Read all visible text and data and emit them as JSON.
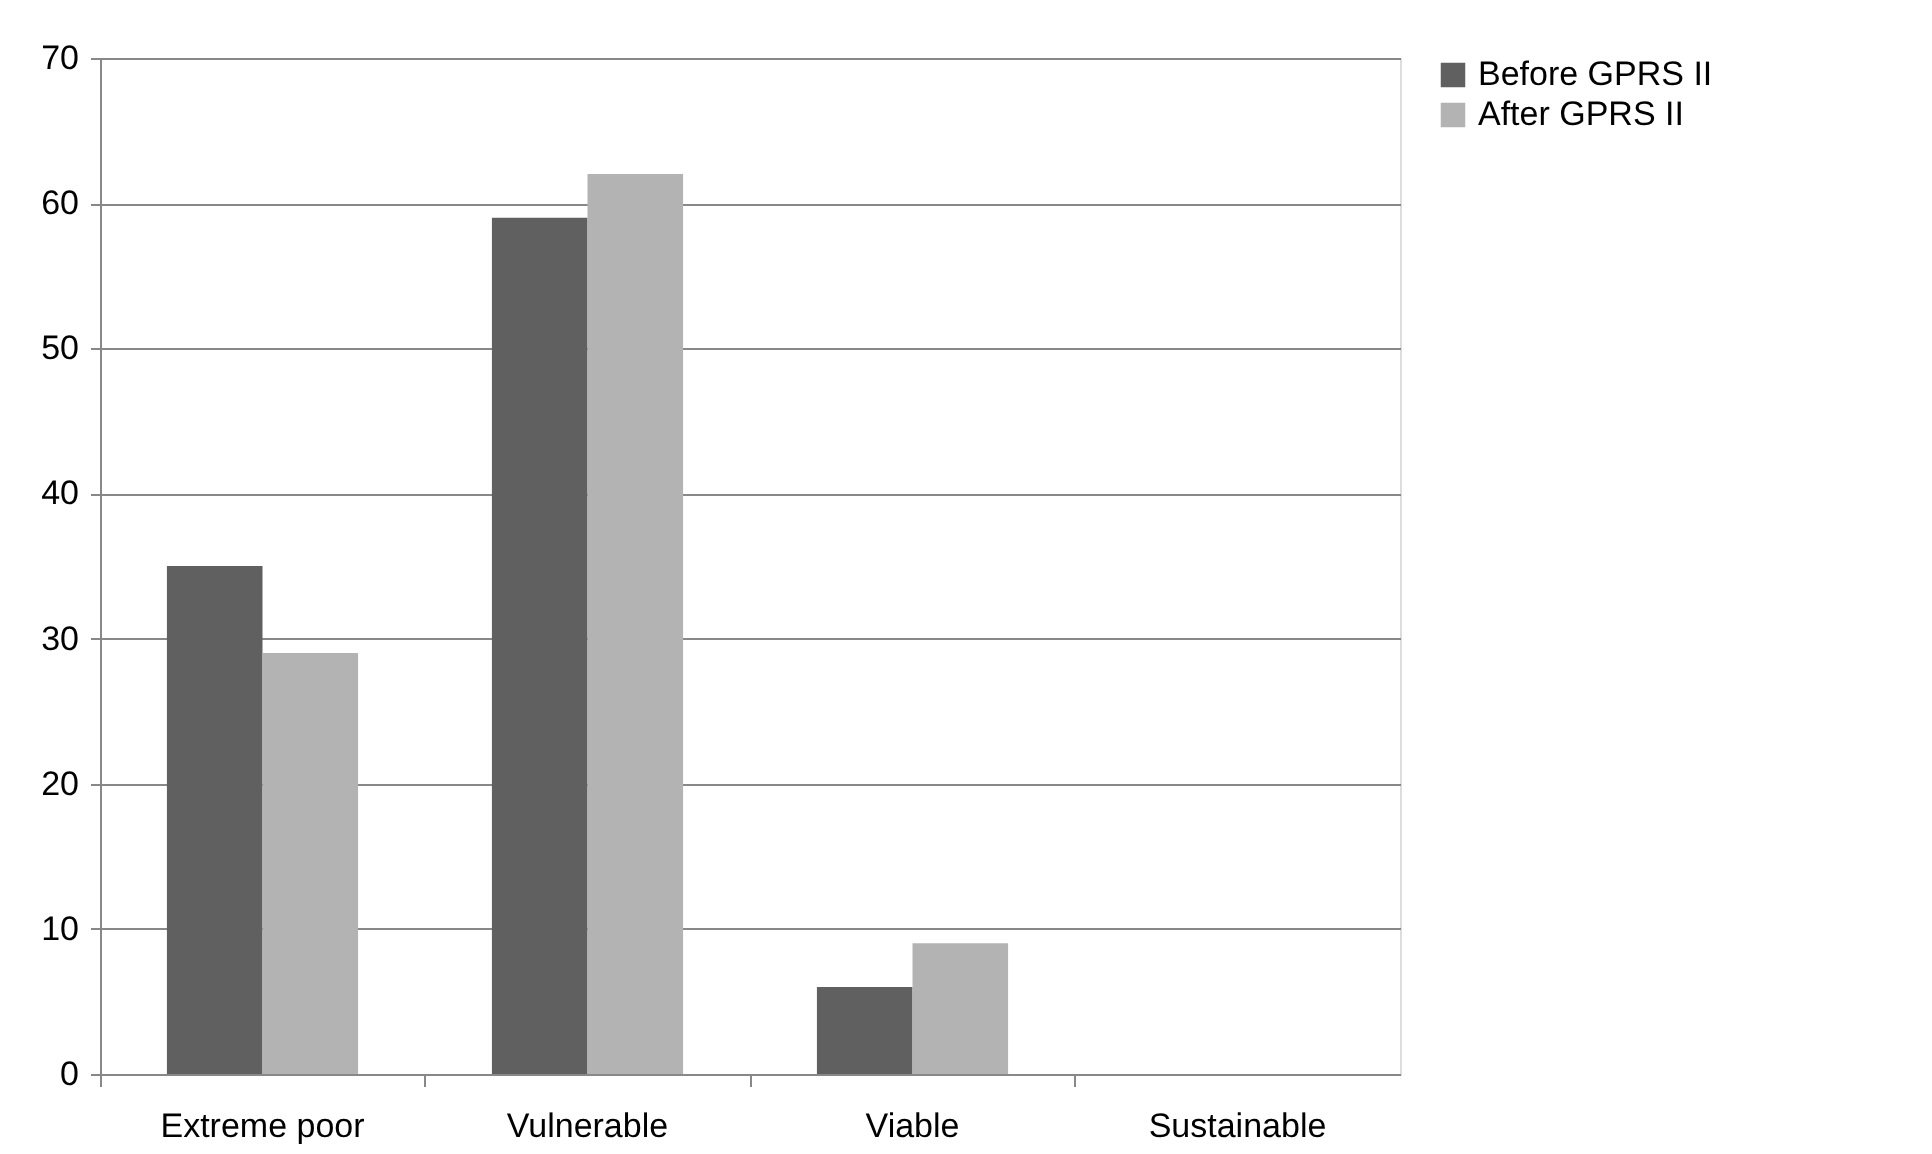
{
  "chart_data": {
    "type": "bar",
    "categories": [
      "Extreme poor",
      "Vulnerable",
      "Viable",
      "Sustainable"
    ],
    "series": [
      {
        "name": "Before GPRS II",
        "color": "#606060",
        "values": [
          35,
          59,
          6,
          0
        ]
      },
      {
        "name": "After GPRS II",
        "color": "#b3b3b3",
        "values": [
          29,
          62,
          9,
          0
        ]
      }
    ],
    "ylim": [
      0,
      70
    ],
    "yticks": [
      0,
      10,
      20,
      30,
      40,
      50,
      60,
      70
    ],
    "grid": "y",
    "legend": "right"
  }
}
